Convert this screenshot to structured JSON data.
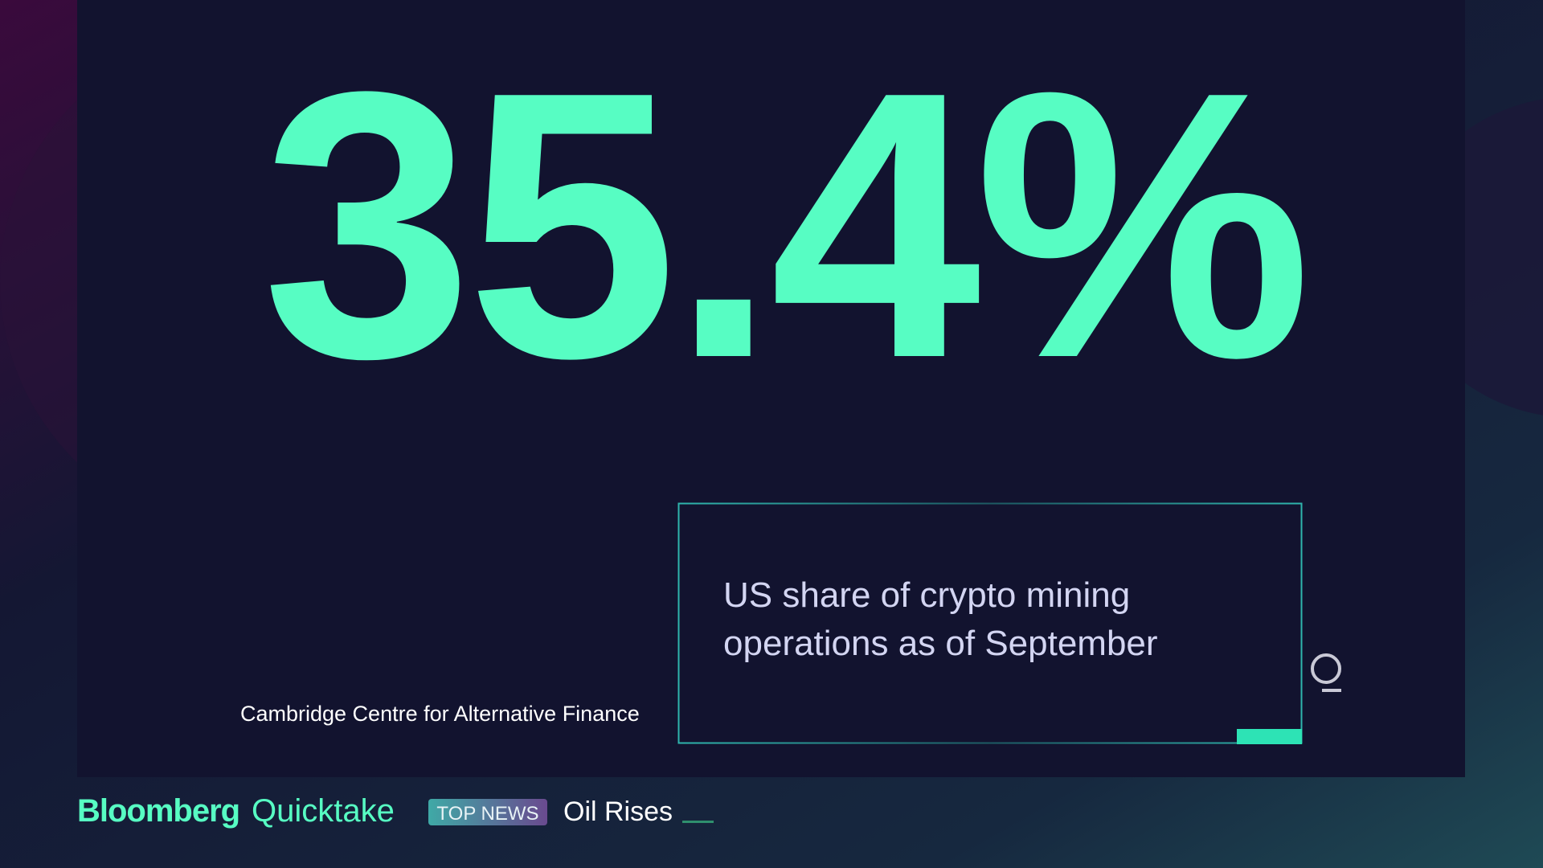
{
  "stat": {
    "value": "35.4%",
    "caption": [
      "US share of crypto mining",
      "operations as of September"
    ],
    "source": "Cambridge Centre for Alternative Finance"
  },
  "ticker": {
    "brand": "Bloomberg",
    "brand_product": "Quicktake",
    "label": "TOP NEWS",
    "headline": "Oil Rises"
  }
}
